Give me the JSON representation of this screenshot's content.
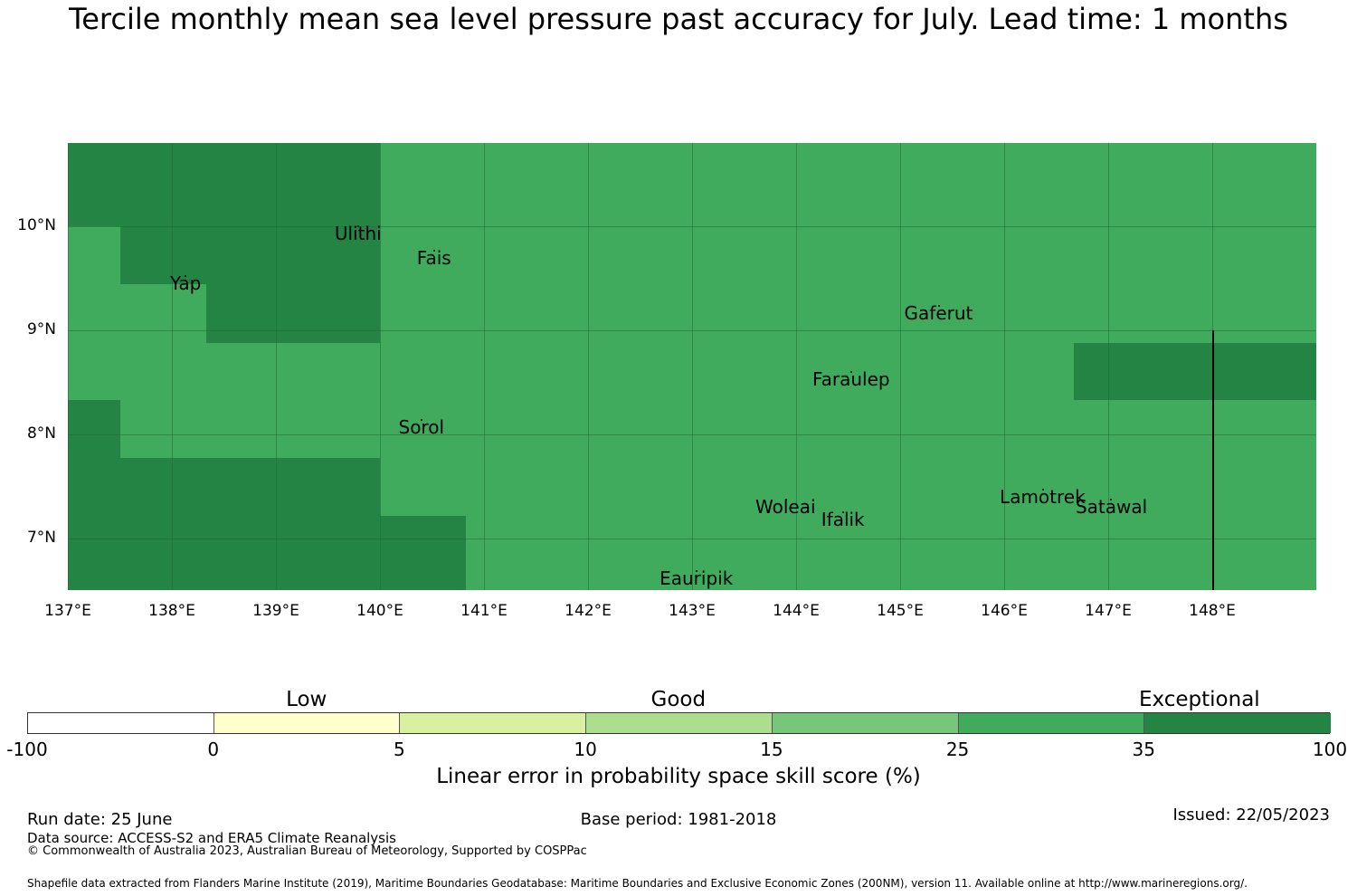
{
  "title": "Tercile monthly mean sea level pressure past accuracy for July. Lead time: 1 months",
  "map": {
    "lon_range": [
      137,
      149
    ],
    "lat_range": [
      6.5,
      10.8
    ],
    "x_ticks": [
      "137°E",
      "138°E",
      "139°E",
      "140°E",
      "141°E",
      "142°E",
      "143°E",
      "144°E",
      "145°E",
      "146°E",
      "147°E",
      "148°E"
    ],
    "y_ticks": [
      "10°N",
      "9°N",
      "8°N",
      "7°N"
    ],
    "colors": {
      "base": "#41ab5d",
      "exceptional": "#238443",
      "grid": "#1f6b35"
    },
    "exceptional_regions": [
      {
        "lon": [
          137.0,
          139.17
        ],
        "lat": [
          10.0,
          10.8
        ]
      },
      {
        "lon": [
          139.17,
          140.0
        ],
        "lat": [
          10.55,
          10.8
        ]
      },
      {
        "lon": [
          139.17,
          140.0
        ],
        "lat": [
          9.44,
          10.55
        ]
      },
      {
        "lon": [
          137.5,
          139.17
        ],
        "lat": [
          9.44,
          10.0
        ]
      },
      {
        "lon": [
          138.33,
          140.0
        ],
        "lat": [
          8.88,
          9.44
        ]
      },
      {
        "lon": [
          137.0,
          137.5
        ],
        "lat": [
          7.77,
          8.33
        ]
      },
      {
        "lon": [
          137.0,
          140.0
        ],
        "lat": [
          7.21,
          7.77
        ]
      },
      {
        "lon": [
          137.0,
          140.83
        ],
        "lat": [
          6.5,
          7.21
        ]
      },
      {
        "lon": [
          146.67,
          149.0
        ],
        "lat": [
          8.33,
          8.88
        ]
      }
    ],
    "places": [
      {
        "name": "Ulithi",
        "lon": 139.79,
        "lat": 10.0
      },
      {
        "name": "Yap",
        "lon": 138.13,
        "lat": 9.52
      },
      {
        "name": "Fais",
        "lon": 140.52,
        "lat": 9.76
      },
      {
        "name": "Gaferut",
        "lon": 145.37,
        "lat": 9.23
      },
      {
        "name": "Faraulep",
        "lon": 144.53,
        "lat": 8.6
      },
      {
        "name": "Sorol",
        "lon": 140.4,
        "lat": 8.14
      },
      {
        "name": "Woleai",
        "lon": 143.9,
        "lat": 7.37
      },
      {
        "name": "Ifalik",
        "lon": 144.45,
        "lat": 7.25
      },
      {
        "name": "Lamotrek",
        "lon": 146.37,
        "lat": 7.47
      },
      {
        "name": "Satawal",
        "lon": 147.03,
        "lat": 7.37
      },
      {
        "name": "Eauripik",
        "lon": 143.04,
        "lat": 6.68
      }
    ]
  },
  "colorbar": {
    "ticks": [
      "-100",
      "0",
      "5",
      "10",
      "15",
      "25",
      "35",
      "100"
    ],
    "colors": [
      "#ffffff",
      "#ffffcc",
      "#d9f0a3",
      "#addd8e",
      "#78c679",
      "#41ab5d",
      "#238443"
    ],
    "categories": [
      "Low",
      "Good",
      "Exceptional"
    ],
    "label": "Linear error in probability space skill score (%)"
  },
  "footer": {
    "run_date": "Run date: 25 June",
    "base_period": "Base period: 1981-2018",
    "issued": "Issued: 22/05/2023",
    "data_source": "Data source: ACCESS-S2 and ERA5 Climate Reanalysis",
    "copyright": "© Commonwealth of Australia 2023, Australian Bureau of Meteorology, Supported by COSPPac",
    "shapefile": "Shapefile data extracted from Flanders Marine Institute (2019), Maritime Boundaries Geodatabase: Maritime Boundaries and Exclusive Economic Zones (200NM), version 11. Available online at http://www.marineregions.org/."
  }
}
